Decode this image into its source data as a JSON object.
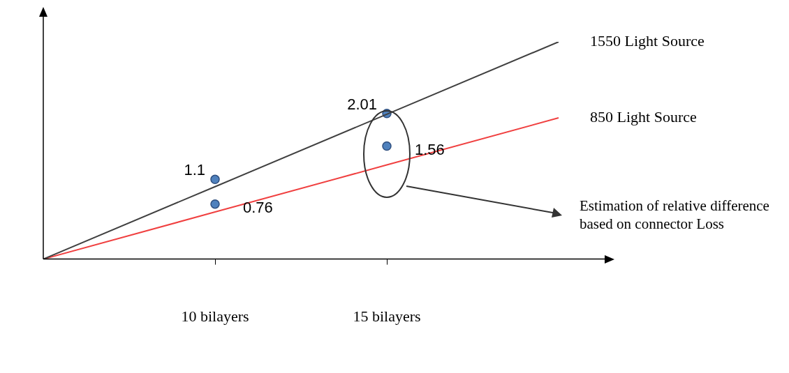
{
  "chart_data": {
    "type": "scatter",
    "grid": false,
    "legend": false,
    "categories": [
      null,
      "10 bilayers",
      "15 bilayers",
      null
    ],
    "series": [
      {
        "type": "line",
        "name": "1550 Light Source",
        "color": "#404040",
        "values": [
          0,
          1,
          2,
          3
        ]
      },
      {
        "type": "line",
        "name": "850 Light Source",
        "color": "#f04040",
        "values": [
          0,
          0.65,
          1.3,
          1.95
        ]
      },
      {
        "color": "#4f81bd",
        "marker": "circle",
        "x": [
          "10 bilayers",
          "10 bilayers",
          "15 bilayers",
          "15 bilayers"
        ],
        "values": [
          1.1,
          0.76,
          2.01,
          1.56
        ],
        "value_labels": [
          "1.1",
          "0.76",
          "2.01",
          "1.56"
        ]
      }
    ],
    "annotations": [
      "Estimation of relative difference based on connector Loss"
    ]
  }
}
